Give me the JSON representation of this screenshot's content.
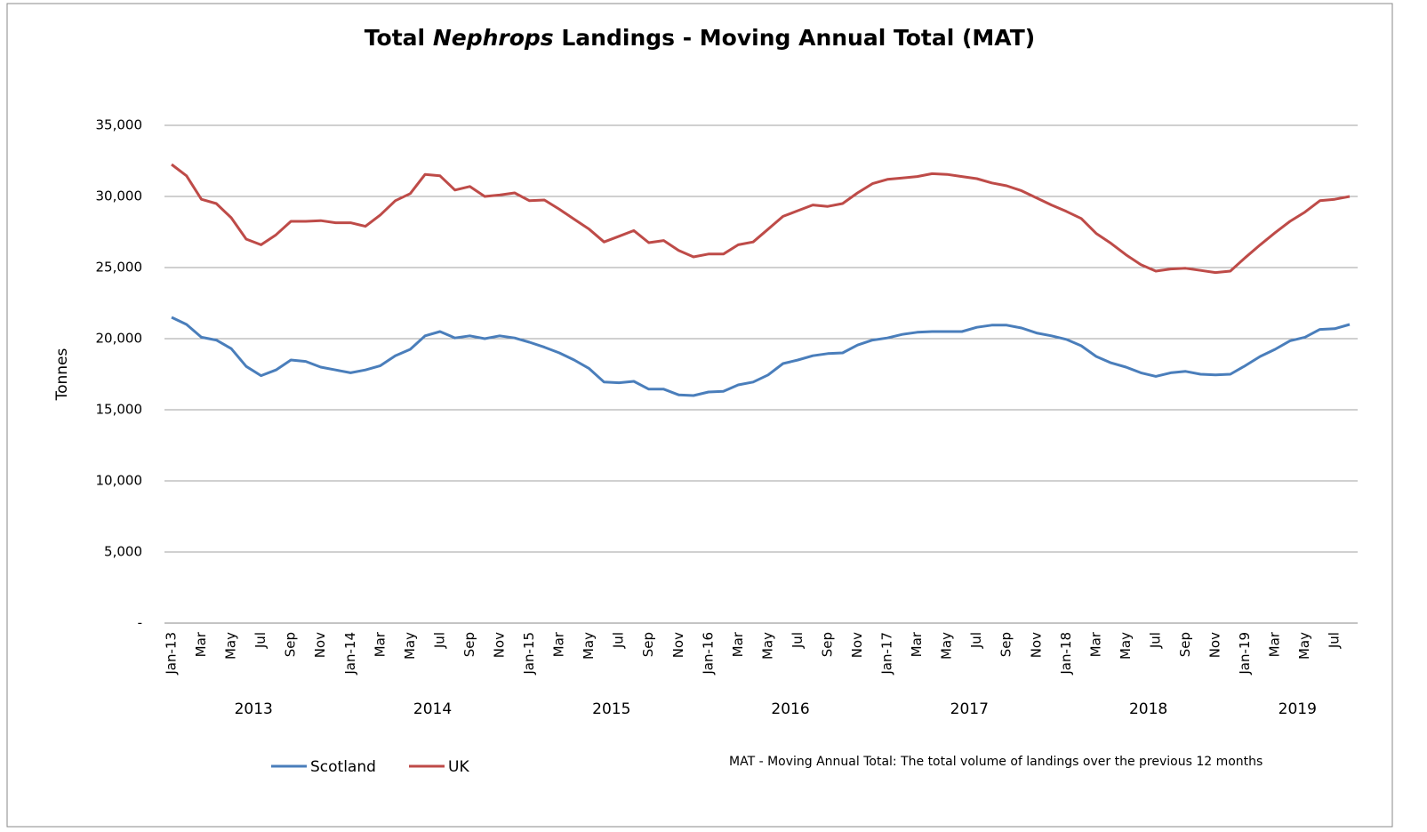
{
  "chart_data": {
    "type": "line",
    "title": [
      "Total ",
      "Nephrops",
      " Landings - Moving Annual Total (MAT)"
    ],
    "y_label": "Tonnes",
    "note": "MAT - Moving Annual Total: The total volume of landings  over the previous 12 months",
    "categories": [
      "Jan-13",
      null,
      "Mar",
      null,
      "May",
      null,
      "Jul",
      null,
      "Sep",
      null,
      "Nov",
      null,
      "Jan-14",
      null,
      "Mar",
      null,
      "May",
      null,
      "Jul",
      null,
      "Sep",
      null,
      "Nov",
      null,
      "Jan-15",
      null,
      "Mar",
      null,
      "May",
      null,
      "Jul",
      null,
      "Sep",
      null,
      "Nov",
      null,
      "Jan-16",
      null,
      "Mar",
      null,
      "May",
      null,
      "Jul",
      null,
      "Sep",
      null,
      "Nov",
      null,
      "Jan-17",
      null,
      "Mar",
      null,
      "May",
      null,
      "Jul",
      null,
      "Sep",
      null,
      "Nov",
      null,
      "Jan-18",
      null,
      "Mar",
      null,
      "May",
      null,
      "Jul",
      null,
      "Sep",
      null,
      "Nov",
      null,
      "Jan-19",
      null,
      "Mar",
      null,
      "May",
      null,
      "Jul",
      null
    ],
    "year_labels": [
      "2013",
      "2014",
      "2015",
      "2016",
      "2017",
      "2018",
      "2019"
    ],
    "series": [
      {
        "name": "Scotland",
        "color": "#4a7ebb",
        "values": [
          21500,
          21000,
          20100,
          19900,
          19300,
          18050,
          17400,
          17800,
          18500,
          18400,
          18000,
          17800,
          17600,
          17800,
          18100,
          18800,
          19250,
          20200,
          20500,
          20050,
          20200,
          20000,
          20200,
          20050,
          19750,
          19400,
          19000,
          18500,
          17900,
          16950,
          16900,
          17000,
          16450,
          16450,
          16050,
          16000,
          16250,
          16300,
          16750,
          16950,
          17450,
          18250,
          18500,
          18800,
          18950,
          19000,
          19550,
          19900,
          20050,
          20300,
          20450,
          20500,
          20500,
          20500,
          20800,
          20950,
          20950,
          20750,
          20400,
          20200,
          19950,
          19500,
          18750,
          18300,
          18000,
          17600,
          17350,
          17600,
          17700,
          17500,
          17450,
          17500,
          18100,
          18750,
          19250,
          19850,
          20100,
          20650,
          20700,
          21000
        ]
      },
      {
        "name": "UK",
        "color": "#be4b48",
        "values": [
          32250,
          31450,
          29800,
          29500,
          28500,
          27000,
          26600,
          27300,
          28250,
          28250,
          28300,
          28150,
          28150,
          27900,
          28700,
          29700,
          30200,
          31550,
          31450,
          30450,
          30700,
          30000,
          30100,
          30250,
          29700,
          29750,
          29100,
          28400,
          27700,
          26800,
          27200,
          27600,
          26750,
          26900,
          26200,
          25750,
          25950,
          25950,
          26600,
          26800,
          27700,
          28600,
          29000,
          29400,
          29300,
          29500,
          30250,
          30900,
          31200,
          31300,
          31400,
          31600,
          31550,
          31400,
          31250,
          30950,
          30750,
          30400,
          29900,
          29400,
          28950,
          28450,
          27400,
          26700,
          25900,
          25200,
          24750,
          24900,
          24950,
          24800,
          24650,
          24750,
          25700,
          26600,
          27450,
          28250,
          28900,
          29700,
          29800,
          30000
        ]
      }
    ],
    "ylim": [
      0,
      35000
    ],
    "yticks": [
      {
        "value": 0,
        "label": "-"
      },
      {
        "value": 5000,
        "label": "5,000"
      },
      {
        "value": 10000,
        "label": "10,000"
      },
      {
        "value": 15000,
        "label": "15,000"
      },
      {
        "value": 20000,
        "label": "20,000"
      },
      {
        "value": 25000,
        "label": "25,000"
      },
      {
        "value": 30000,
        "label": "30,000"
      },
      {
        "value": 35000,
        "label": "35,000"
      }
    ],
    "grid": true
  }
}
